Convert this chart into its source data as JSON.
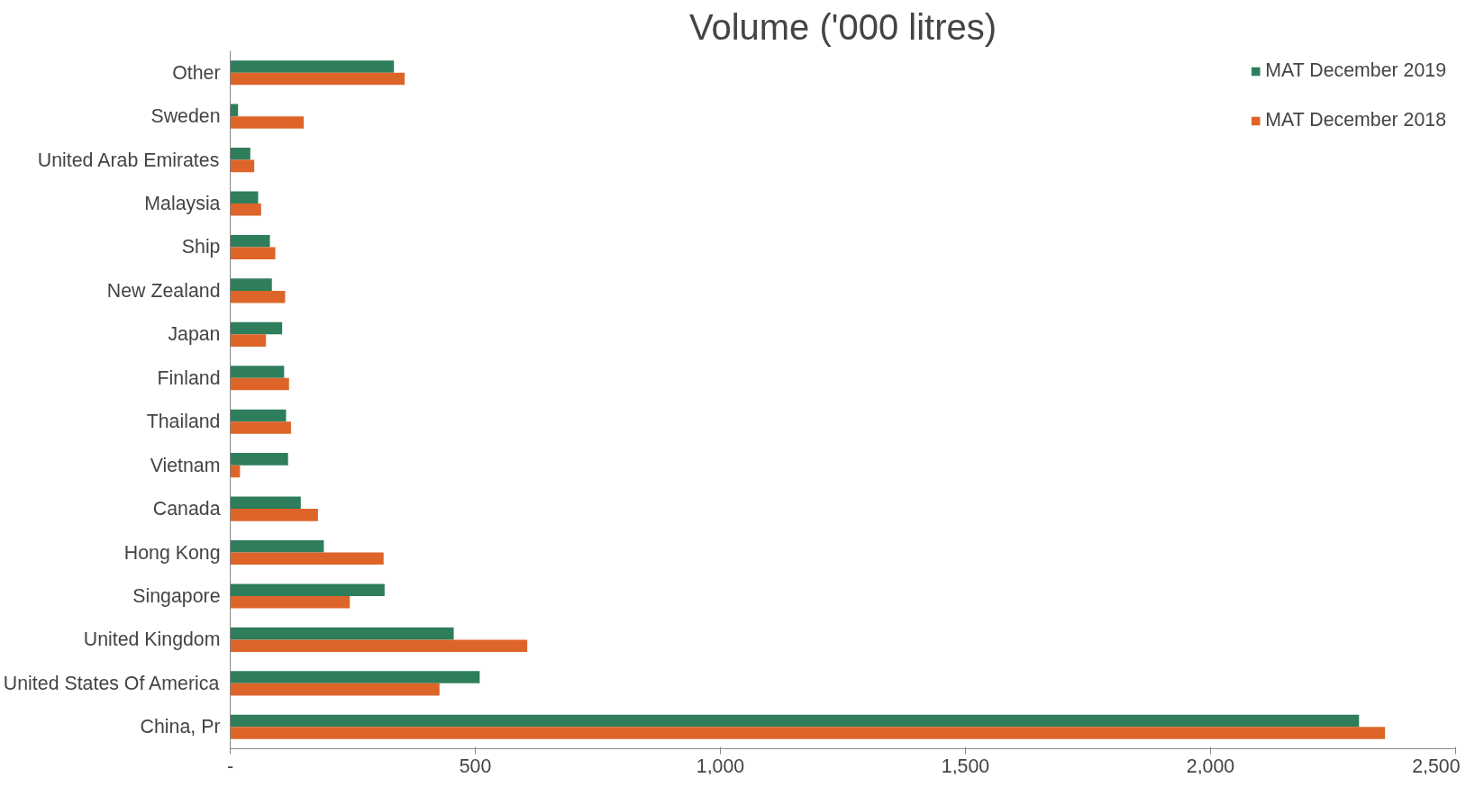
{
  "chart_data": {
    "type": "bar",
    "orientation": "horizontal",
    "title": "Volume ('000 litres)",
    "categories": [
      "Other",
      "Sweden",
      "United Arab Emirates",
      "Malaysia",
      "Ship",
      "New Zealand",
      "Japan",
      "Finland",
      "Thailand",
      "Vietnam",
      "Canada",
      "Hong Kong",
      "Singapore",
      "United Kingdom",
      "United States Of America",
      "China, Pr"
    ],
    "series": [
      {
        "name": "MAT December 2019",
        "color": "#2e7d5b",
        "values": [
          334,
          16,
          41,
          57,
          81,
          85,
          106,
          110,
          114,
          118,
          144,
          191,
          315,
          456,
          509,
          2303
        ]
      },
      {
        "name": "MAT December 2018",
        "color": "#dd6529",
        "values": [
          356,
          150,
          49,
          63,
          92,
          112,
          73,
          120,
          124,
          20,
          179,
          313,
          244,
          606,
          427,
          2356
        ]
      }
    ],
    "xlim": [
      0,
      2500
    ],
    "xticks": [
      {
        "value": 0,
        "label": "-"
      },
      {
        "value": 500,
        "label": "500"
      },
      {
        "value": 1000,
        "label": "1,000"
      },
      {
        "value": 1500,
        "label": "1,500"
      },
      {
        "value": 2000,
        "label": "2,000"
      },
      {
        "value": 2500,
        "label": "2,500"
      }
    ],
    "legend": "top right",
    "grid": false
  }
}
